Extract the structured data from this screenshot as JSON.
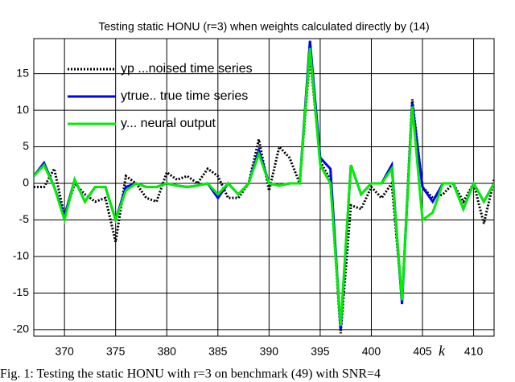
{
  "chart_data": {
    "type": "line",
    "title": "Testing static HONU (r=3) when weights calculated directly by (14)",
    "x_label": "k",
    "caption": "Fig. 1: Testing the static HONU with r=3 on benchmark (49) with SNR=4",
    "x": [
      367,
      368,
      369,
      370,
      371,
      372,
      373,
      374,
      375,
      376,
      377,
      378,
      379,
      380,
      381,
      382,
      383,
      384,
      385,
      386,
      387,
      388,
      389,
      390,
      391,
      392,
      393,
      394,
      395,
      396,
      397,
      398,
      399,
      400,
      401,
      402,
      403,
      404,
      405,
      406,
      407,
      408,
      409,
      410,
      411,
      412
    ],
    "series": [
      {
        "name": "yp ...noised time series",
        "color": "#000000",
        "dash": true,
        "values": [
          -0.5,
          -0.5,
          2,
          -4.5,
          0,
          -1.5,
          -2.5,
          -2,
          -8,
          1,
          0,
          -2,
          -2.5,
          1.5,
          0.5,
          1,
          0,
          2,
          1,
          -2,
          -2,
          0,
          6,
          -1,
          5,
          3.5,
          0,
          17.5,
          3,
          0.5,
          -20.5,
          -3,
          -3.5,
          -0.5,
          -2,
          0,
          -16,
          11.5,
          -0.5,
          -2,
          -1.5,
          0,
          -2.5,
          0,
          -5.5,
          0.5
        ]
      },
      {
        "name": "ytrue.. true time series",
        "color": "#0000ff",
        "values": [
          1,
          2.8,
          -0.5,
          -4.5,
          0.5,
          -2.5,
          -0.5,
          -0.5,
          -5,
          -0.5,
          0,
          -0.5,
          -0.5,
          0,
          -0.3,
          -0.5,
          -0.3,
          0,
          -2,
          0,
          -1.5,
          0,
          4.5,
          0,
          -0.3,
          0,
          0,
          19.5,
          3.5,
          2,
          -20,
          2.5,
          -1.5,
          0,
          0,
          2.5,
          -16.5,
          11,
          -0.5,
          -2.5,
          0,
          0,
          -3.5,
          0,
          -2.5,
          0
        ]
      },
      {
        "name": "y... neural output",
        "color": "#00ee00",
        "values": [
          1,
          2.5,
          -0.5,
          -5,
          0.5,
          -2.5,
          -0.5,
          -0.5,
          -5,
          -1,
          0,
          -0.5,
          -0.5,
          0,
          -0.3,
          -0.5,
          -0.3,
          0,
          -1.5,
          0,
          -1.5,
          0,
          4,
          0,
          -0.3,
          0,
          0,
          18.5,
          2.5,
          0,
          -19.5,
          2.5,
          -1.5,
          0,
          0,
          2,
          -16,
          10.5,
          -5,
          -4,
          0,
          0,
          -3.5,
          0,
          -2.5,
          0
        ]
      }
    ],
    "xlim": [
      367,
      412
    ],
    "ylim": [
      -20.9,
      19.8
    ],
    "xticks": [
      370,
      375,
      380,
      385,
      390,
      395,
      400,
      405,
      410
    ],
    "yticks": [
      -20,
      -15,
      -10,
      -5,
      0,
      5,
      10,
      15
    ],
    "grid": true,
    "legend": "upper left"
  }
}
